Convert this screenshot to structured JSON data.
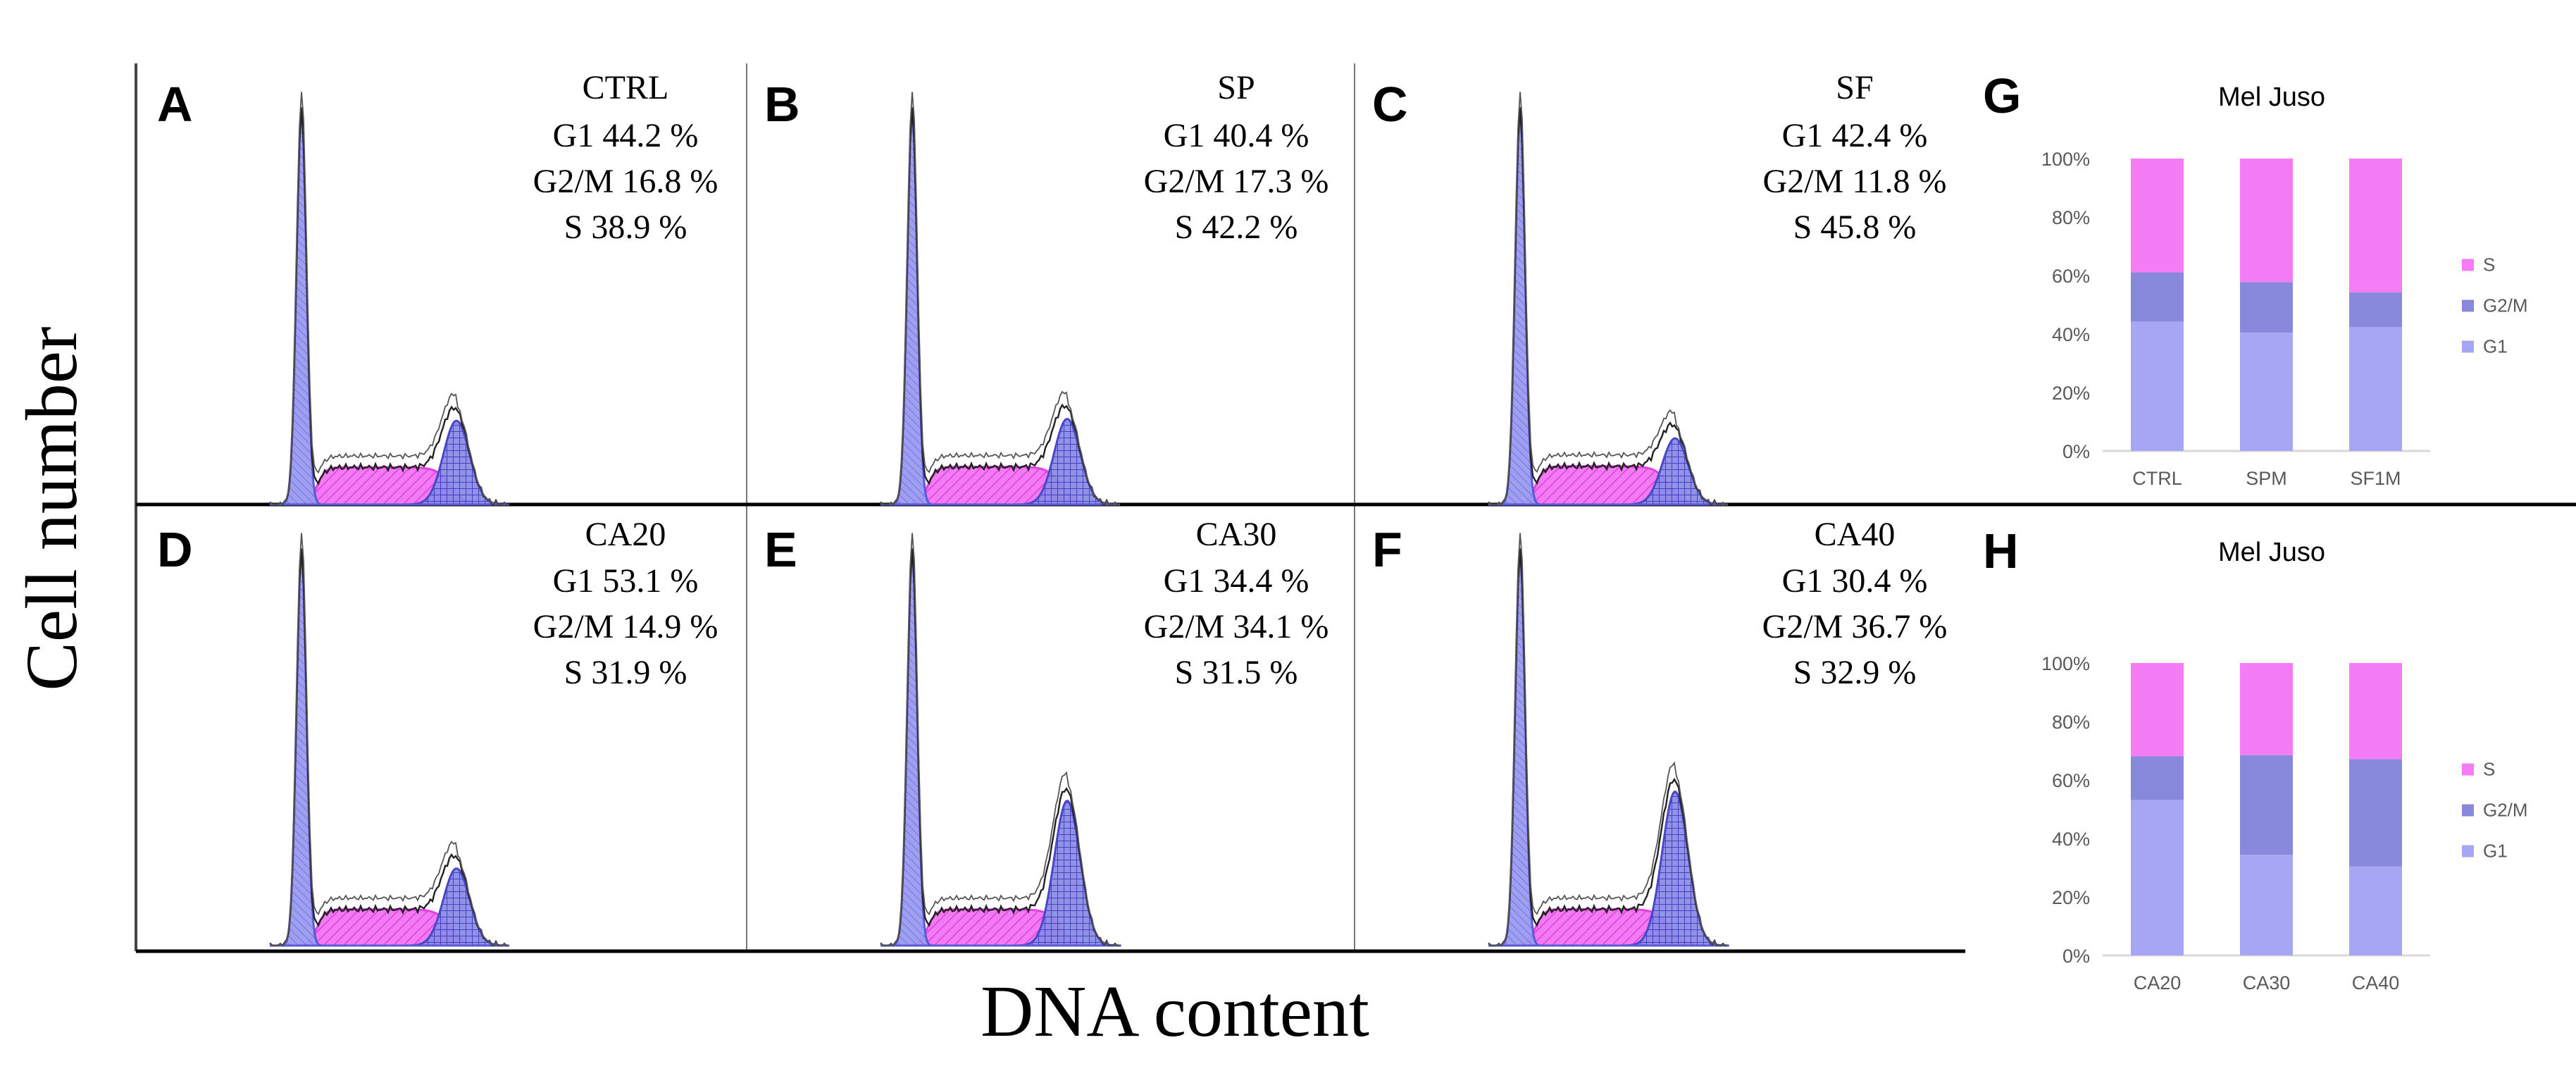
{
  "figure": {
    "y_axis_label": "Cell number",
    "x_axis_label": "DNA content"
  },
  "colors": {
    "g1": "#9a9af0",
    "g1_dark": "#5a5ad8",
    "s": "#f27af2",
    "s_dark": "#e040e0",
    "g2m": "#8080e0",
    "g2m_dark": "#4848c8",
    "outline": "#222222",
    "axis": "#000000",
    "bar_g1": "#a6a6f4",
    "bar_g2m": "#8888dc",
    "bar_s": "#f47cf4",
    "tick": "#595959",
    "gridline": "#d9d9d9"
  },
  "histograms": [
    {
      "letter": "A",
      "name": "CTRL",
      "lines": [
        "G1 44.2 %",
        "G2/M 16.8 %",
        "S 38.9 %"
      ],
      "g1": 44.2,
      "g2m": 16.8,
      "s": 38.9
    },
    {
      "letter": "B",
      "name": "SP",
      "lines": [
        "G1 40.4 %",
        "G2/M 17.3 %",
        "S 42.2 %"
      ],
      "g1": 40.4,
      "g2m": 17.3,
      "s": 42.2
    },
    {
      "letter": "C",
      "name": "SF",
      "lines": [
        "G1 42.4 %",
        "G2/M 11.8 %",
        "S 45.8 %"
      ],
      "g1": 42.4,
      "g2m": 11.8,
      "s": 45.8
    },
    {
      "letter": "D",
      "name": "CA20",
      "lines": [
        "G1 53.1 %",
        "G2/M 14.9 %",
        "S 31.9 %"
      ],
      "g1": 53.1,
      "g2m": 14.9,
      "s": 31.9
    },
    {
      "letter": "E",
      "name": "CA30",
      "lines": [
        "G1 34.4 %",
        "G2/M 34.1 %",
        "S 31.5 %"
      ],
      "g1": 34.4,
      "g2m": 34.1,
      "s": 31.5
    },
    {
      "letter": "F",
      "name": "CA40",
      "lines": [
        "G1 30.4 %",
        "G2/M 36.7 %",
        "S 32.9 %"
      ],
      "g1": 30.4,
      "g2m": 36.7,
      "s": 32.9
    }
  ],
  "chart_data": [
    {
      "type": "bar",
      "stacked": true,
      "letter": "G",
      "title": "Mel Juso",
      "categories": [
        "CTRL",
        "SPM",
        "SF1M"
      ],
      "series": [
        {
          "name": "G1",
          "values": [
            44.2,
            40.4,
            42.4
          ]
        },
        {
          "name": "G2/M",
          "values": [
            16.8,
            17.3,
            11.8
          ]
        },
        {
          "name": "S",
          "values": [
            38.9,
            42.2,
            45.8
          ]
        }
      ],
      "yticks": [
        "0%",
        "20%",
        "40%",
        "60%",
        "80%",
        "100%"
      ],
      "ylim": [
        0,
        100
      ],
      "legend": "right",
      "legend_order": [
        "S",
        "G2/M",
        "G1"
      ],
      "grid": false
    },
    {
      "type": "bar",
      "stacked": true,
      "letter": "H",
      "title": "Mel Juso",
      "categories": [
        "CA20",
        "CA30",
        "CA40"
      ],
      "series": [
        {
          "name": "G1",
          "values": [
            53.1,
            34.4,
            30.4
          ]
        },
        {
          "name": "G2/M",
          "values": [
            14.9,
            34.1,
            36.7
          ]
        },
        {
          "name": "S",
          "values": [
            31.9,
            31.5,
            32.9
          ]
        }
      ],
      "yticks": [
        "0%",
        "20%",
        "40%",
        "60%",
        "80%",
        "100%"
      ],
      "ylim": [
        0,
        100
      ],
      "legend": "right",
      "legend_order": [
        "S",
        "G2/M",
        "G1"
      ],
      "grid": false
    }
  ]
}
